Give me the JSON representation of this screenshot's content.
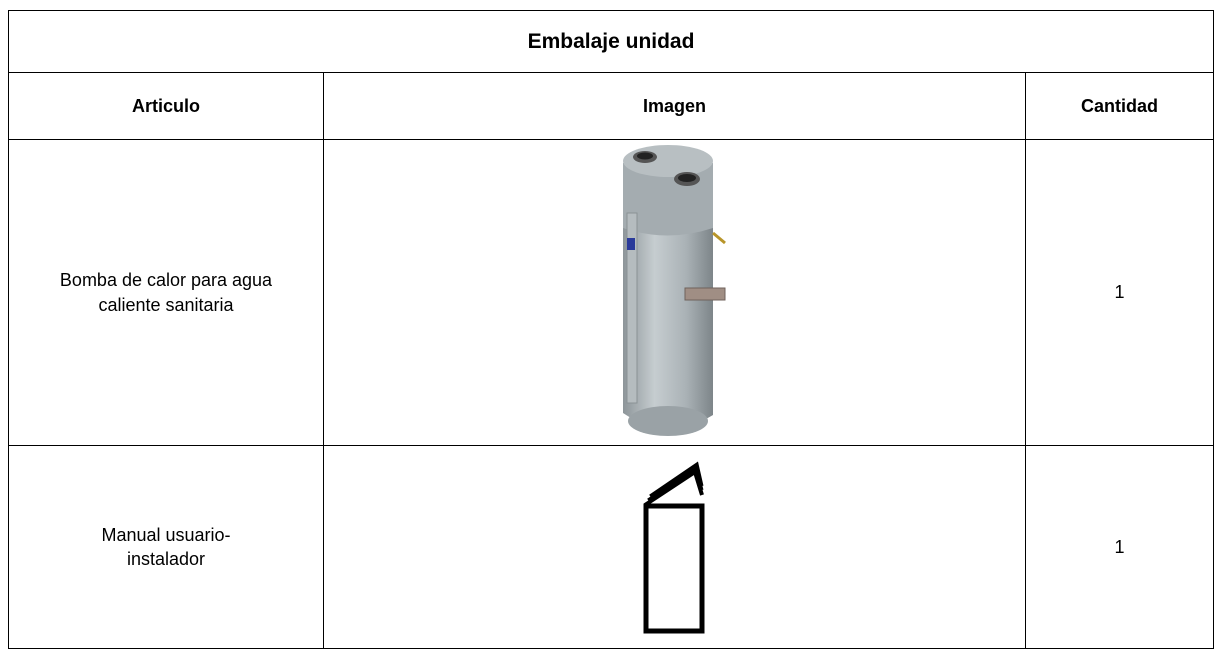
{
  "table": {
    "title": "Embalaje unidad",
    "headers": [
      "Articulo",
      "Imagen",
      "Cantidad"
    ],
    "rows": [
      [
        "Bomba de calor para agua caliente sanitaria",
        1
      ],
      [
        "Manual usuario-instalador",
        1
      ]
    ]
  }
}
